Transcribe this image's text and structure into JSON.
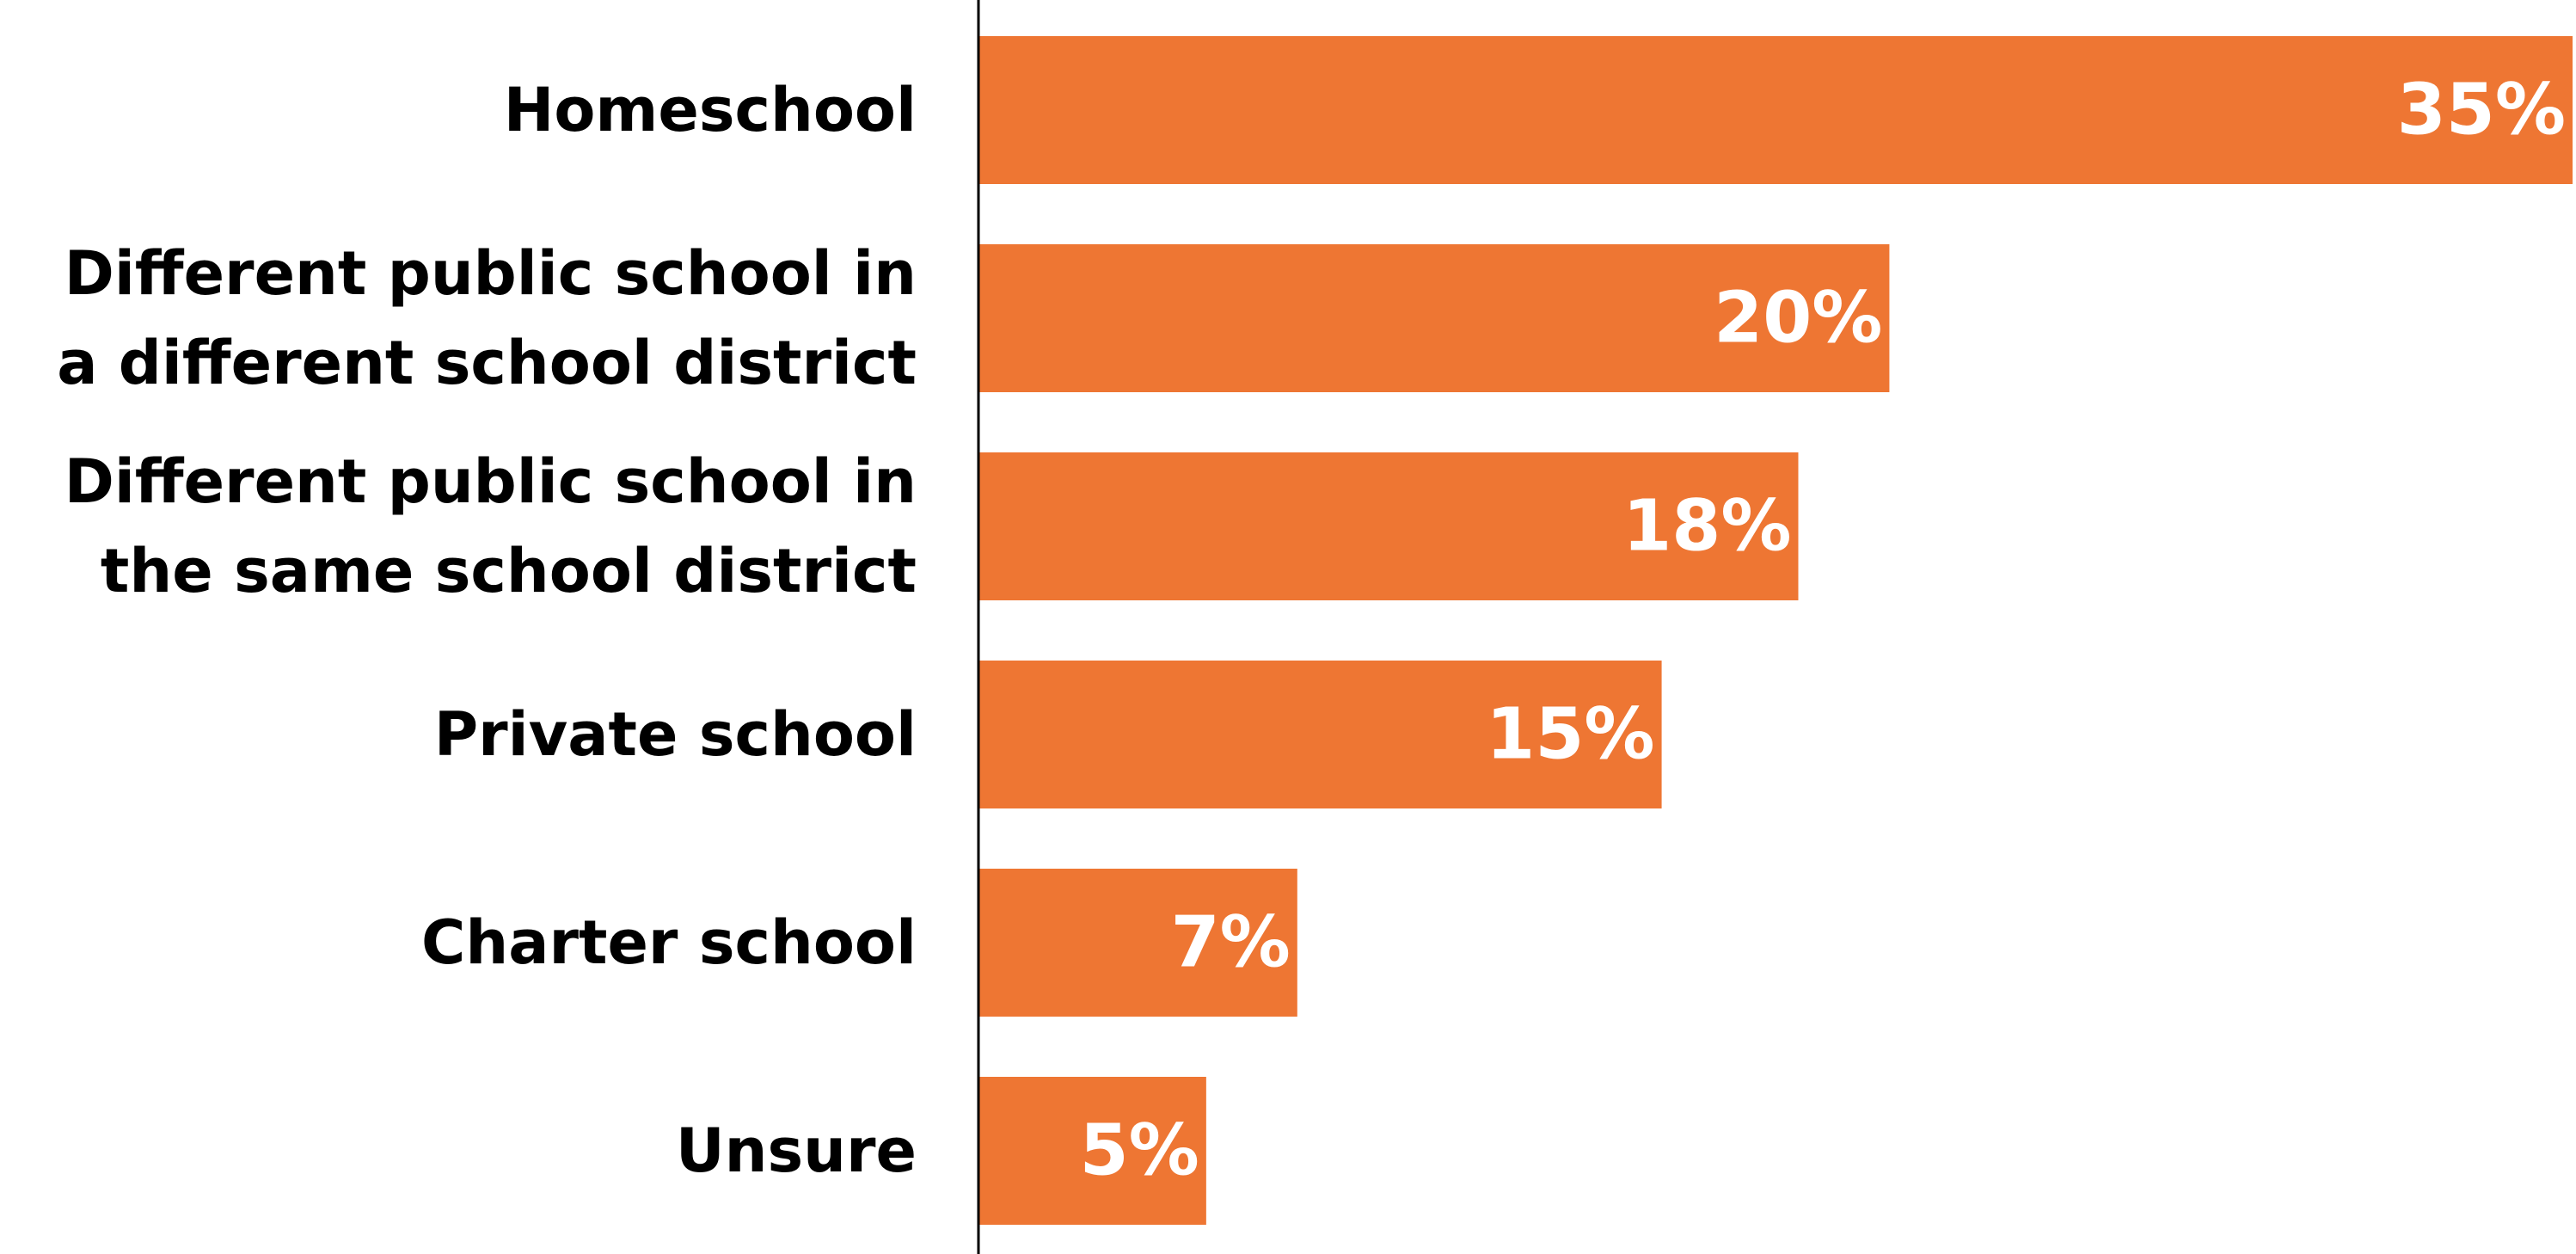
{
  "chart_data": {
    "type": "bar",
    "orientation": "horizontal",
    "categories": [
      [
        "Homeschool"
      ],
      [
        "Different public school in",
        "a different school district"
      ],
      [
        "Different public school in",
        "the same school district"
      ],
      [
        "Private school"
      ],
      [
        "Charter school"
      ],
      [
        "Unsure"
      ]
    ],
    "values": [
      35,
      20,
      18,
      15,
      7,
      5
    ],
    "value_labels": [
      "35%",
      "20%",
      "18%",
      "15%",
      "7%",
      "5%"
    ],
    "unit": "%",
    "xlim": [
      0,
      35
    ],
    "grid": false,
    "legend": "none",
    "bar_color": "#EE7633",
    "value_label_color": "#ffffff",
    "axis_color": "#000000"
  }
}
